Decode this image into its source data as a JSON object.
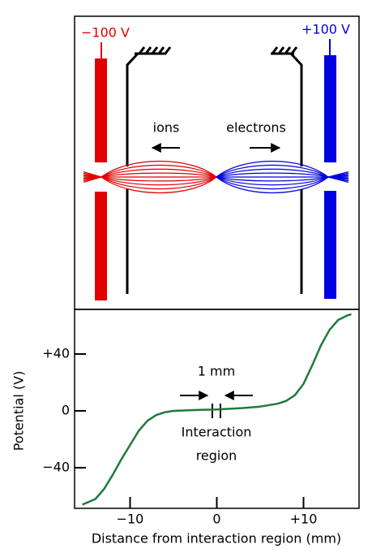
{
  "diagram": {
    "left_voltage": "−100 V",
    "right_voltage": "+100 V",
    "ions_label": "ions",
    "electrons_label": "electrons"
  },
  "chart_data": {
    "type": "line",
    "x": [
      -15.5,
      -14,
      -13,
      -12,
      -11,
      -10,
      -9,
      -8,
      -7,
      -6,
      -5,
      -3,
      0,
      3,
      5,
      7,
      8,
      9,
      10,
      11,
      12,
      13,
      14,
      15,
      15.5
    ],
    "series": [
      {
        "name": "Potential",
        "color": "#1e7b3c",
        "values": [
          -66,
          -62,
          -55,
          -45,
          -34,
          -24,
          -14,
          -7,
          -3,
          -1,
          0,
          0.5,
          1,
          2,
          3,
          5,
          7,
          11,
          19,
          32,
          46,
          57,
          64,
          67,
          68
        ]
      }
    ],
    "xlim": [
      -16.4,
      16.4
    ],
    "ylim": [
      -68.6,
      71.4
    ],
    "xticks": [
      {
        "value": -10,
        "label": "−10"
      },
      0,
      {
        "value": 10,
        "label": "+10"
      }
    ],
    "yticks": [
      {
        "value": 40,
        "label": "+40"
      },
      0,
      {
        "value": -40,
        "label": "−40"
      }
    ],
    "xlabel": "Distance from interaction region (mm)",
    "ylabel": "Potential (V)",
    "annotations": {
      "gap": "1 mm",
      "region_lines": [
        "Interaction",
        "region"
      ]
    }
  }
}
